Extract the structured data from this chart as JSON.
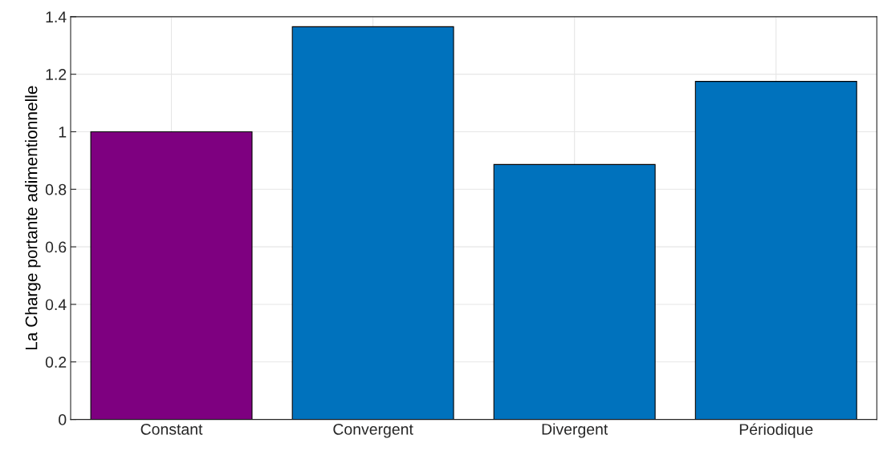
{
  "chart_data": {
    "type": "bar",
    "ylabel": "La Charge portante adimentionnelle",
    "categories": [
      "Constant",
      "Convergent",
      "Divergent",
      "Périodique"
    ],
    "values": [
      1.0,
      1.365,
      0.886,
      1.175
    ],
    "colors": [
      "#7e0080",
      "#0072bd",
      "#0072bd",
      "#0072bd"
    ],
    "ylim": [
      0,
      1.4
    ],
    "yticks": [
      0,
      0.2,
      0.4,
      0.6,
      0.8,
      1,
      1.2,
      1.4
    ],
    "grid": true
  }
}
